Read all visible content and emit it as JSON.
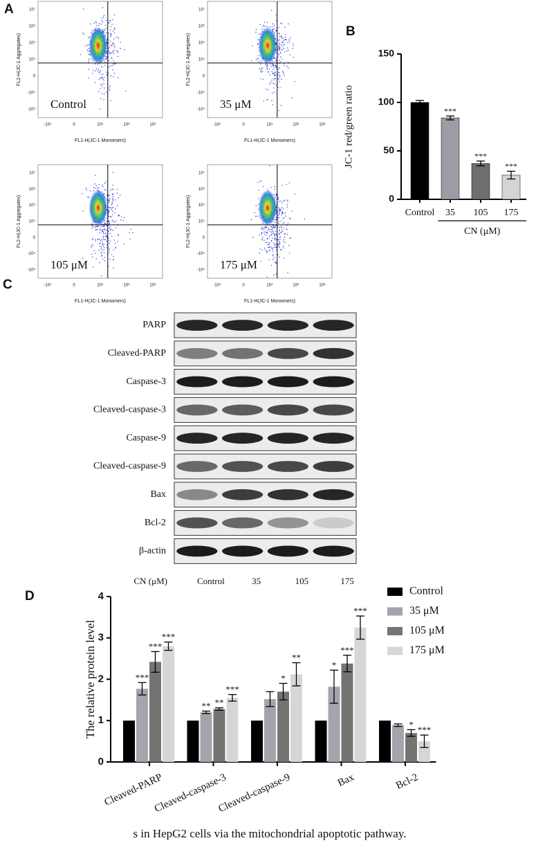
{
  "panel_labels": [
    "A",
    "B",
    "C",
    "D"
  ],
  "flow": {
    "plots": [
      {
        "label": "Control"
      },
      {
        "label": "35 μM"
      },
      {
        "label": "105 μM"
      },
      {
        "label": "175 μM"
      }
    ],
    "xlabel": "FL1-H(JC-1 Monomers)",
    "ylabel": "FL2-H(JC-1 Aggregates)",
    "xticks": [
      "-10⁴",
      "0",
      "10⁴",
      "10⁶",
      "10⁸"
    ],
    "yticks": [
      "10⁷",
      "10⁶",
      "10⁵",
      "10⁴",
      "0",
      "-10⁴",
      "-10⁵"
    ]
  },
  "chart_data": [
    {
      "type": "bar",
      "categories": [
        "Control",
        "35",
        "105",
        "175"
      ],
      "values": [
        100,
        84,
        37,
        25
      ],
      "errors": [
        2,
        2,
        2.5,
        4
      ],
      "significance": [
        null,
        "***",
        "***",
        "***"
      ],
      "colors": [
        "#000000",
        "#9c9ca4",
        "#6e6e6e",
        "#d4d4d4"
      ],
      "ylabel": "JC-1 red/green ratio",
      "group_label": "CN (μM)",
      "ylim": [
        0,
        150
      ],
      "yticks": [
        0,
        50,
        100,
        150
      ]
    },
    {
      "type": "grouped_bar",
      "categories": [
        "Cleaved-PARP",
        "Cleaved-caspase-3",
        "Cleaved-caspase-9",
        "Bax",
        "Bcl-2"
      ],
      "series": [
        {
          "name": "Control",
          "color": "#000000",
          "values": [
            1,
            1,
            1,
            1,
            1
          ]
        },
        {
          "name": "35 μM",
          "color": "#a4a4ac",
          "values": [
            1.77,
            1.2,
            1.52,
            1.82,
            0.89
          ],
          "errors": [
            0.15,
            0.03,
            0.18,
            0.4,
            0.03
          ],
          "significance": [
            "***",
            "**",
            null,
            "*",
            null
          ]
        },
        {
          "name": "105 μM",
          "color": "#747474",
          "values": [
            2.42,
            1.28,
            1.7,
            2.38,
            0.7
          ],
          "errors": [
            0.25,
            0.03,
            0.2,
            0.2,
            0.08
          ],
          "significance": [
            "***",
            "**",
            "*",
            "***",
            "*"
          ]
        },
        {
          "name": "175 μM",
          "color": "#d6d6d6",
          "values": [
            2.8,
            1.55,
            2.12,
            3.25,
            0.5
          ],
          "errors": [
            0.1,
            0.08,
            0.28,
            0.28,
            0.15
          ],
          "significance": [
            "***",
            "***",
            "**",
            "***",
            "***"
          ]
        }
      ],
      "ylabel": "The relative protein level",
      "ylim": [
        0,
        4
      ],
      "yticks": [
        0,
        1,
        2,
        3,
        4
      ],
      "legend": "upper right"
    }
  ],
  "blot": {
    "rows": [
      "PARP",
      "Cleaved-PARP",
      "Caspase-3",
      "Cleaved-caspase-3",
      "Caspase-9",
      "Cleaved-caspase-9",
      "Bax",
      "Bcl-2",
      "β-actin"
    ],
    "treatment_label": "CN (μM)",
    "lanes": [
      "Control",
      "35",
      "105",
      "175"
    ]
  },
  "caption": "s in HepG2 cells via the mitochondrial apoptotic pathway."
}
